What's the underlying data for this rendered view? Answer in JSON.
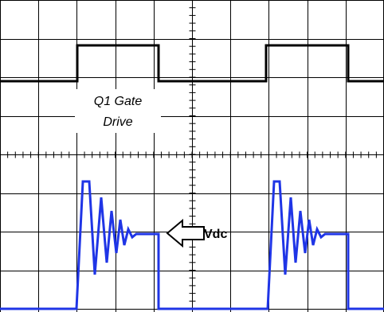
{
  "labels": {
    "gate_line1": "Q1 Gate",
    "gate_line2": "Drive",
    "vdc": "Vdc"
  },
  "colors": {
    "grid": "#000000",
    "gate_trace": "#000000",
    "output_trace": "#1f35e6",
    "background": "#ffffff"
  },
  "icons": {
    "pointer": "left-arrow-icon"
  },
  "grid": {
    "divisions_x": 10,
    "divisions_y": 8
  }
}
